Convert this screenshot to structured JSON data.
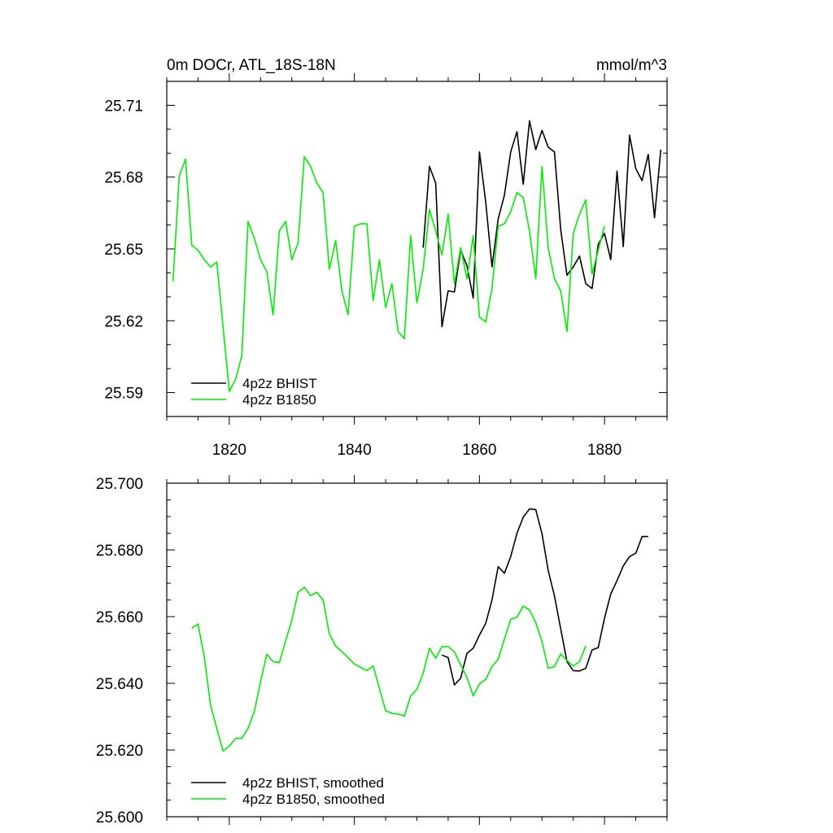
{
  "chart_data": [
    {
      "type": "line",
      "title": "0m DOCr, ATL_18S-18N",
      "units": "mmol/m^3",
      "xlim": [
        1810,
        1890
      ],
      "ylim": [
        25.58,
        25.72
      ],
      "xticks": [
        1820,
        1840,
        1860,
        1880
      ],
      "xtick_labels": [
        "1820",
        "1840",
        "1860",
        "1880"
      ],
      "yticks": [
        25.59,
        25.62,
        25.65,
        25.68,
        25.71
      ],
      "ytick_labels": [
        "25.59",
        "25.62",
        "25.65",
        "25.68",
        "25.71"
      ],
      "legend": [
        "4p2z BHIST",
        "4p2z B1850"
      ],
      "series": [
        {
          "name": "4p2z BHIST",
          "color": "#000000",
          "x": [
            1851,
            1852,
            1853,
            1854,
            1855,
            1856,
            1857,
            1858,
            1859,
            1860,
            1861,
            1862,
            1863,
            1864,
            1865,
            1866,
            1867,
            1868,
            1869,
            1870,
            1871,
            1872,
            1873,
            1874,
            1875,
            1876,
            1877,
            1878,
            1879,
            1880,
            1881,
            1882,
            1883,
            1884,
            1885,
            1886,
            1887,
            1888,
            1889
          ],
          "values": [
            25.6505,
            25.6845,
            25.6775,
            25.6175,
            25.6325,
            25.632,
            25.6495,
            25.643,
            25.6295,
            25.6905,
            25.6695,
            25.6425,
            25.6625,
            25.6725,
            25.6905,
            25.699,
            25.677,
            25.7035,
            25.6915,
            25.6995,
            25.6925,
            25.6905,
            25.658,
            25.639,
            25.6425,
            25.647,
            25.6355,
            25.6335,
            25.652,
            25.6565,
            25.6455,
            25.6825,
            25.651,
            25.6975,
            25.6835,
            25.6785,
            25.6895,
            25.663,
            25.6915
          ]
        },
        {
          "name": "4p2z B1850",
          "color": "#00ee00",
          "x": [
            1811,
            1812,
            1813,
            1814,
            1815,
            1816,
            1817,
            1818,
            1819,
            1820,
            1821,
            1822,
            1823,
            1824,
            1825,
            1826,
            1827,
            1828,
            1829,
            1830,
            1831,
            1832,
            1833,
            1834,
            1835,
            1836,
            1837,
            1838,
            1839,
            1840,
            1841,
            1842,
            1843,
            1844,
            1845,
            1846,
            1847,
            1848,
            1849,
            1850,
            1851,
            1852,
            1853,
            1854,
            1855,
            1856,
            1857,
            1858,
            1859,
            1860,
            1861,
            1862,
            1863,
            1864,
            1865,
            1866,
            1867,
            1868,
            1869,
            1870,
            1871,
            1872,
            1873,
            1874,
            1875,
            1876,
            1877,
            1878,
            1879,
            1880
          ],
          "values": [
            25.6365,
            25.6805,
            25.6875,
            25.6515,
            25.6495,
            25.6455,
            25.6425,
            25.6445,
            25.6175,
            25.5905,
            25.5955,
            25.6055,
            25.6615,
            25.6545,
            25.6455,
            25.6405,
            25.6225,
            25.6575,
            25.6615,
            25.6455,
            25.6525,
            25.6885,
            25.6845,
            25.6775,
            25.6735,
            25.6415,
            25.6535,
            25.6325,
            25.6225,
            25.6595,
            25.6605,
            25.6605,
            25.6285,
            25.6455,
            25.6255,
            25.6355,
            25.6155,
            25.6125,
            25.6555,
            25.6275,
            25.6415,
            25.6665,
            25.6575,
            25.6475,
            25.6645,
            25.6355,
            25.6505,
            25.6375,
            25.6555,
            25.6215,
            25.6195,
            25.6335,
            25.6595,
            25.6605,
            25.6655,
            25.6735,
            25.6715,
            25.6575,
            25.6375,
            25.6845,
            25.6505,
            25.6375,
            25.6325,
            25.6155,
            25.6565,
            25.6645,
            25.6705,
            25.6395,
            25.6495,
            25.6595
          ]
        }
      ]
    },
    {
      "type": "line",
      "title": "",
      "xlim": [
        1810,
        1890
      ],
      "ylim": [
        25.6,
        25.7
      ],
      "xticks": [
        1820,
        1840,
        1860,
        1880
      ],
      "xtick_labels": [
        "",
        "",
        "",
        ""
      ],
      "yticks": [
        25.6,
        25.62,
        25.64,
        25.66,
        25.68,
        25.7
      ],
      "ytick_labels": [
        "25.600",
        "25.620",
        "25.640",
        "25.660",
        "25.680",
        "25.700"
      ],
      "legend": [
        "4p2z BHIST, smoothed",
        "4p2z B1850, smoothed"
      ],
      "series": [
        {
          "name": "4p2z BHIST, smoothed",
          "color": "#000000",
          "x": [
            1854,
            1855,
            1856,
            1857,
            1858,
            1859,
            1860,
            1861,
            1862,
            1863,
            1864,
            1865,
            1866,
            1867,
            1868,
            1869,
            1870,
            1871,
            1872,
            1873,
            1874,
            1875,
            1876,
            1877,
            1878,
            1879,
            1880,
            1881,
            1882,
            1883,
            1884,
            1885,
            1886,
            1887
          ],
          "values": [
            25.6485,
            25.6477,
            25.6395,
            25.6415,
            25.649,
            25.6505,
            25.6545,
            25.658,
            25.665,
            25.675,
            25.673,
            25.678,
            25.685,
            25.6898,
            25.6923,
            25.6921,
            25.6848,
            25.6738,
            25.6662,
            25.6563,
            25.6465,
            25.6438,
            25.6437,
            25.6445,
            25.65,
            25.6507,
            25.6595,
            25.6668,
            25.6708,
            25.6752,
            25.678,
            25.679,
            25.684,
            25.684
          ]
        },
        {
          "name": "4p2z B1850, smoothed",
          "color": "#00ee00",
          "x": [
            1814,
            1815,
            1816,
            1817,
            1818,
            1819,
            1820,
            1821,
            1822,
            1823,
            1824,
            1825,
            1826,
            1827,
            1828,
            1829,
            1830,
            1831,
            1832,
            1833,
            1834,
            1835,
            1836,
            1837,
            1838,
            1839,
            1840,
            1841,
            1842,
            1843,
            1844,
            1845,
            1846,
            1847,
            1848,
            1849,
            1850,
            1851,
            1852,
            1853,
            1854,
            1855,
            1856,
            1857,
            1858,
            1859,
            1860,
            1861,
            1862,
            1863,
            1864,
            1865,
            1866,
            1867,
            1868,
            1869,
            1870,
            1871,
            1872,
            1873,
            1874,
            1875,
            1876,
            1877
          ],
          "values": [
            25.6565,
            25.6578,
            25.648,
            25.6335,
            25.6265,
            25.6197,
            25.6212,
            25.6235,
            25.6235,
            25.6265,
            25.6315,
            25.6405,
            25.6487,
            25.6465,
            25.6462,
            25.6527,
            25.659,
            25.6673,
            25.6688,
            25.6663,
            25.6673,
            25.665,
            25.6548,
            25.6512,
            25.6495,
            25.6477,
            25.6458,
            25.6448,
            25.6438,
            25.6452,
            25.6385,
            25.6318,
            25.631,
            25.6308,
            25.6302,
            25.6362,
            25.6382,
            25.643,
            25.6505,
            25.6475,
            25.651,
            25.651,
            25.6495,
            25.6455,
            25.6418,
            25.6362,
            25.6398,
            25.6412,
            25.645,
            25.6472,
            25.6533,
            25.6592,
            25.6598,
            25.6632,
            25.662,
            25.6582,
            25.6525,
            25.6445,
            25.645,
            25.6488,
            25.6468,
            25.6452,
            25.6465,
            25.6512
          ]
        }
      ]
    }
  ]
}
